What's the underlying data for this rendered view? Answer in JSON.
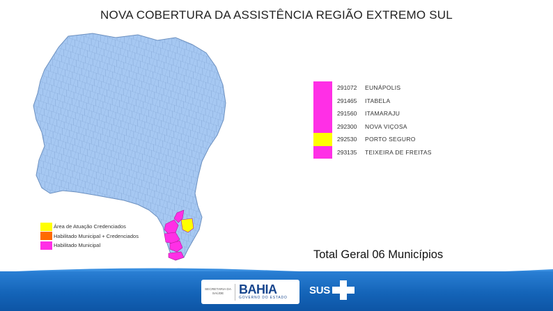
{
  "title": "NOVA COBERTURA DA ASSISTÊNCIA REGIÃO EXTREMO SUL",
  "colors": {
    "map_fill": "#a6c8f2",
    "map_border": "#6b8fbf",
    "municipal": "#ff2fe6",
    "credenciados": "#ffff00",
    "municipal_credenciados": "#ff6a00",
    "footer_blue": "#1464b8"
  },
  "municipalities": [
    {
      "code": "291072",
      "name": "EUNÁPOLIS",
      "status": "municipal"
    },
    {
      "code": "291465",
      "name": "ITABELA",
      "status": "municipal"
    },
    {
      "code": "291560",
      "name": "ITAMARAJU",
      "status": "municipal"
    },
    {
      "code": "292300",
      "name": "NOVA VIÇOSA",
      "status": "municipal"
    },
    {
      "code": "292530",
      "name": "PORTO SEGURO",
      "status": "credenciados"
    },
    {
      "code": "293135",
      "name": "TEIXEIRA DE FREITAS",
      "status": "municipal"
    }
  ],
  "legend": [
    {
      "label": "Área de Atuação Credenciados",
      "status": "credenciados"
    },
    {
      "label": "Habilitado Municipal + Credenciados",
      "status": "municipal_credenciados"
    },
    {
      "label": "Habilitado Municipal",
      "status": "municipal"
    }
  ],
  "total_label": "Total Geral 06 Municípios",
  "footer": {
    "secretaria_label": "SECRETARIA DA SAÚDE",
    "bahia_label": "BAHIA",
    "governo_label": "GOVERNO DO ESTADO",
    "sus_label": "SUS"
  }
}
